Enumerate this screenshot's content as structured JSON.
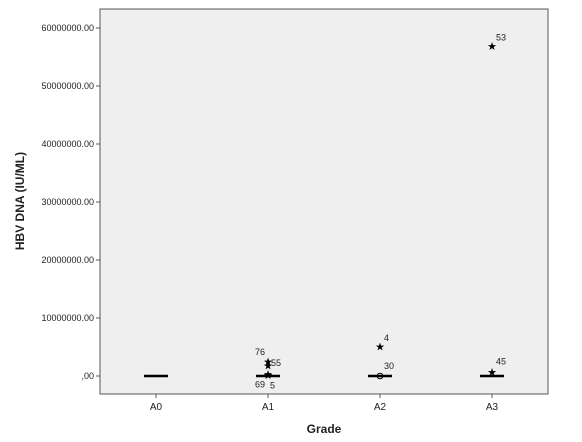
{
  "chart_data": {
    "type": "boxplot",
    "xlabel": "Grade",
    "ylabel": "HBV DNA (IU/ML)",
    "categories": [
      "A0",
      "A1",
      "A2",
      "A3"
    ],
    "ylim": [
      -3000000,
      63000000
    ],
    "yticks": [
      0,
      10000000,
      20000000,
      30000000,
      40000000,
      50000000,
      60000000
    ],
    "ytick_labels": [
      ",00",
      "10000000.00",
      "20000000.00",
      "30000000.00",
      "40000000.00",
      "50000000.00",
      "60000000.00"
    ],
    "medians": [
      {
        "category": "A0",
        "value": 0
      },
      {
        "category": "A1",
        "value": 0
      },
      {
        "category": "A2",
        "value": 0
      },
      {
        "category": "A3",
        "value": 0
      }
    ],
    "outliers": [
      {
        "category": "A1",
        "marker": "star",
        "value": 2400000,
        "label": "76"
      },
      {
        "category": "A1",
        "marker": "star",
        "value": 1700000,
        "label": "55"
      },
      {
        "category": "A1",
        "marker": "star",
        "value": 300000,
        "label": "69"
      },
      {
        "category": "A1",
        "marker": "star",
        "value": 100000,
        "label": "5"
      },
      {
        "category": "A2",
        "marker": "star",
        "value": 5000000,
        "label": "4"
      },
      {
        "category": "A2",
        "marker": "circle",
        "value": 0,
        "label": "30"
      },
      {
        "category": "A3",
        "marker": "star",
        "value": 56800000,
        "label": "53"
      },
      {
        "category": "A3",
        "marker": "star",
        "value": 600000,
        "label": "45"
      }
    ]
  }
}
